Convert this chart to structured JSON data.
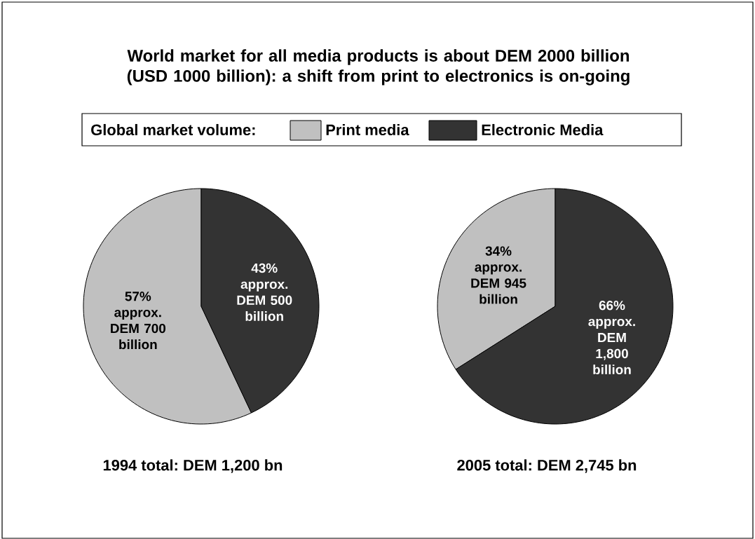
{
  "chart_data": [
    {
      "type": "pie",
      "title": "World market for all media products is about DEM 2000 billion (USD 1000 billion): a shift from print to electronics is on-going",
      "legend_title": "Global market volume:",
      "legend": "top",
      "categories": [
        "Print media",
        "Electronic Media"
      ],
      "values": [
        57,
        43
      ],
      "colors": [
        "#c0c0c0",
        "#333333"
      ],
      "value_labels": [
        "57% approx. DEM 700 billion",
        "43% approx. DEM 500 billion"
      ],
      "xlabel": "1994 total: DEM 1,200 bn"
    },
    {
      "type": "pie",
      "categories": [
        null,
        null
      ],
      "values": [
        34,
        66
      ],
      "colors": [
        "#c0c0c0",
        "#333333"
      ],
      "value_labels": [
        "34% approx. DEM 945 billion",
        "66% approx. DEM 1,800 billion"
      ],
      "xlabel": "2005 total: DEM 2,745 bn"
    }
  ]
}
